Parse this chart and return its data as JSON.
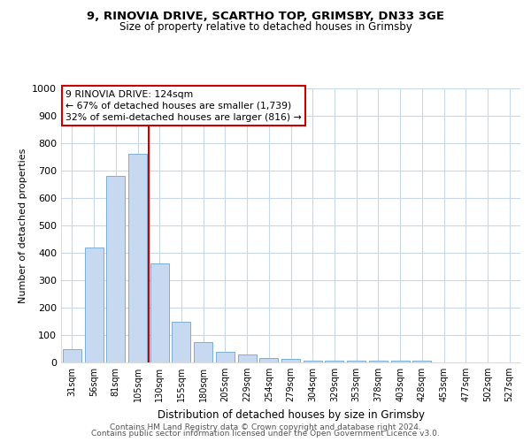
{
  "title1": "9, RINOVIA DRIVE, SCARTHO TOP, GRIMSBY, DN33 3GE",
  "title2": "Size of property relative to detached houses in Grimsby",
  "xlabel": "Distribution of detached houses by size in Grimsby",
  "ylabel": "Number of detached properties",
  "bar_labels": [
    "31sqm",
    "56sqm",
    "81sqm",
    "105sqm",
    "130sqm",
    "155sqm",
    "180sqm",
    "205sqm",
    "229sqm",
    "254sqm",
    "279sqm",
    "304sqm",
    "329sqm",
    "353sqm",
    "378sqm",
    "403sqm",
    "428sqm",
    "453sqm",
    "477sqm",
    "502sqm",
    "527sqm"
  ],
  "bar_values": [
    50,
    420,
    680,
    760,
    360,
    150,
    75,
    40,
    28,
    15,
    12,
    8,
    5,
    5,
    8,
    8,
    5,
    0,
    0,
    0,
    0
  ],
  "bar_color": "#c6d9f0",
  "bar_edge_color": "#7bafd4",
  "red_line_index": 4.0,
  "annotation_line1": "9 RINOVIA DRIVE: 124sqm",
  "annotation_line2": "← 67% of detached houses are smaller (1,739)",
  "annotation_line3": "32% of semi-detached houses are larger (816) →",
  "annotation_box_facecolor": "#ffffff",
  "annotation_box_edgecolor": "#cc0000",
  "ylim_max": 1000,
  "yticks": [
    0,
    100,
    200,
    300,
    400,
    500,
    600,
    700,
    800,
    900,
    1000
  ],
  "grid_color": "#c8d8e8",
  "footer1": "Contains HM Land Registry data © Crown copyright and database right 2024.",
  "footer2": "Contains public sector information licensed under the Open Government Licence v3.0."
}
